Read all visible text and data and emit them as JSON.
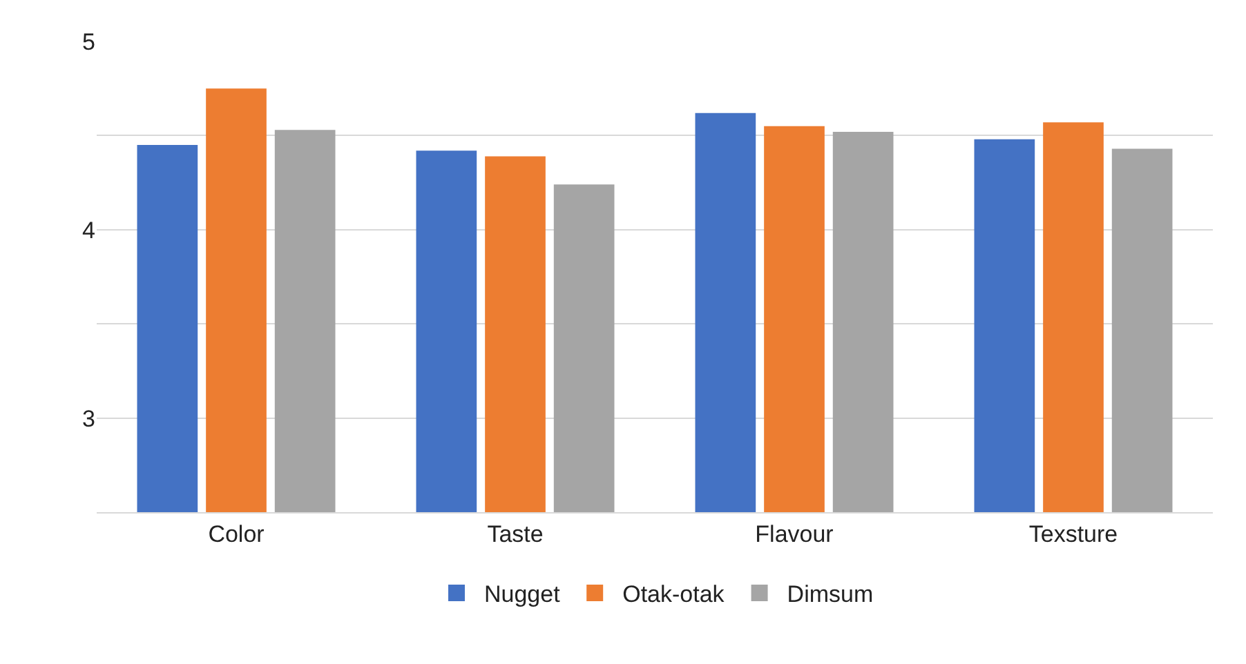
{
  "chart_data": {
    "type": "bar",
    "categories": [
      "Color",
      "Taste",
      "Flavour",
      "Texsture"
    ],
    "series": [
      {
        "name": "Nugget",
        "color": "#4472c4",
        "values": [
          4.45,
          4.42,
          4.62,
          4.48
        ]
      },
      {
        "name": "Otak-otak",
        "color": "#ed7d31",
        "values": [
          4.75,
          4.39,
          4.55,
          4.57
        ]
      },
      {
        "name": "Dimsum",
        "color": "#a5a5a5",
        "values": [
          4.53,
          4.24,
          4.52,
          4.43
        ]
      }
    ],
    "ylim": [
      2.5,
      5
    ],
    "yticks": [
      {
        "value": 2.5,
        "label": null
      },
      3,
      {
        "value": 3.5,
        "label": null
      },
      4,
      {
        "value": 4.5,
        "label": null
      },
      5
    ],
    "grid": "y",
    "legend": "bottom"
  }
}
